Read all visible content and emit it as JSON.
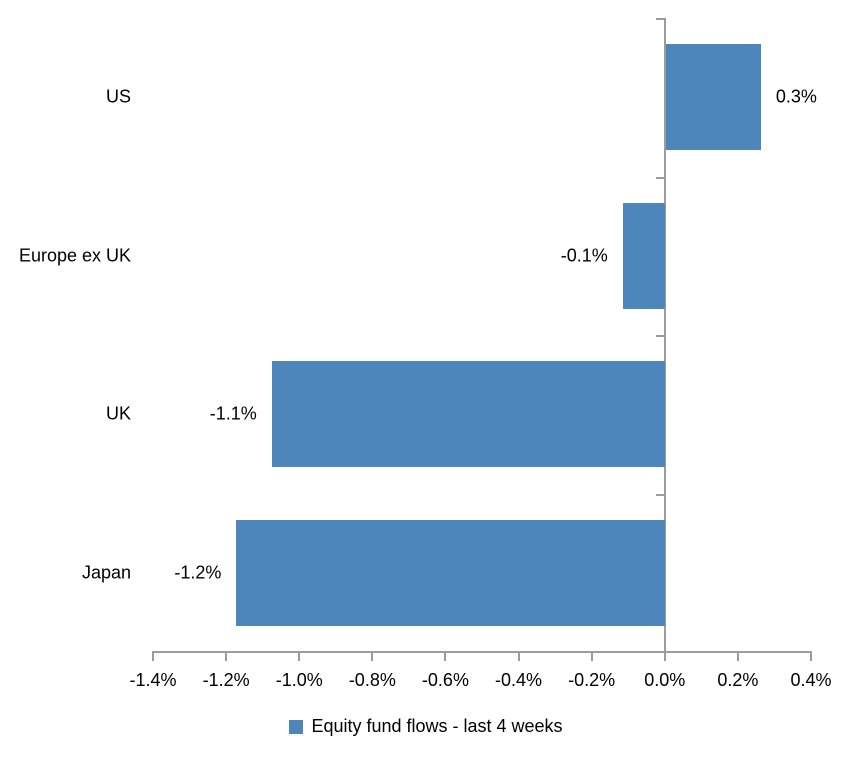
{
  "chart_data": {
    "type": "bar",
    "orientation": "horizontal",
    "categories": [
      "US",
      "Europe ex UK",
      "UK",
      "Japan"
    ],
    "series": [
      {
        "name": "Equity fund flows - last 4 weeks",
        "values_pct": [
          0.3,
          -0.1,
          -1.1,
          -1.2
        ],
        "plot_values_pct": [
          0.26,
          -0.115,
          -1.075,
          -1.172
        ],
        "data_labels": [
          "0.3%",
          "-0.1%",
          "-1.1%",
          "-1.2%"
        ]
      }
    ],
    "xlim_pct": [
      -1.4,
      0.4
    ],
    "x_tick_values_pct": [
      -1.4,
      -1.2,
      -1.0,
      -0.8,
      -0.6,
      -0.4,
      -0.2,
      0.0,
      0.2,
      0.4
    ],
    "x_tick_labels": [
      "-1.4%",
      "-1.2%",
      "-1.0%",
      "-0.8%",
      "-0.6%",
      "-0.4%",
      "-0.2%",
      "0.0%",
      "0.2%",
      "0.4%"
    ],
    "grid": "off",
    "legend_position": "bottom",
    "colors": {
      "bar": "#4d86ba",
      "axis": "#9c9c9c",
      "text": "#000000",
      "background": "#ffffff"
    }
  }
}
